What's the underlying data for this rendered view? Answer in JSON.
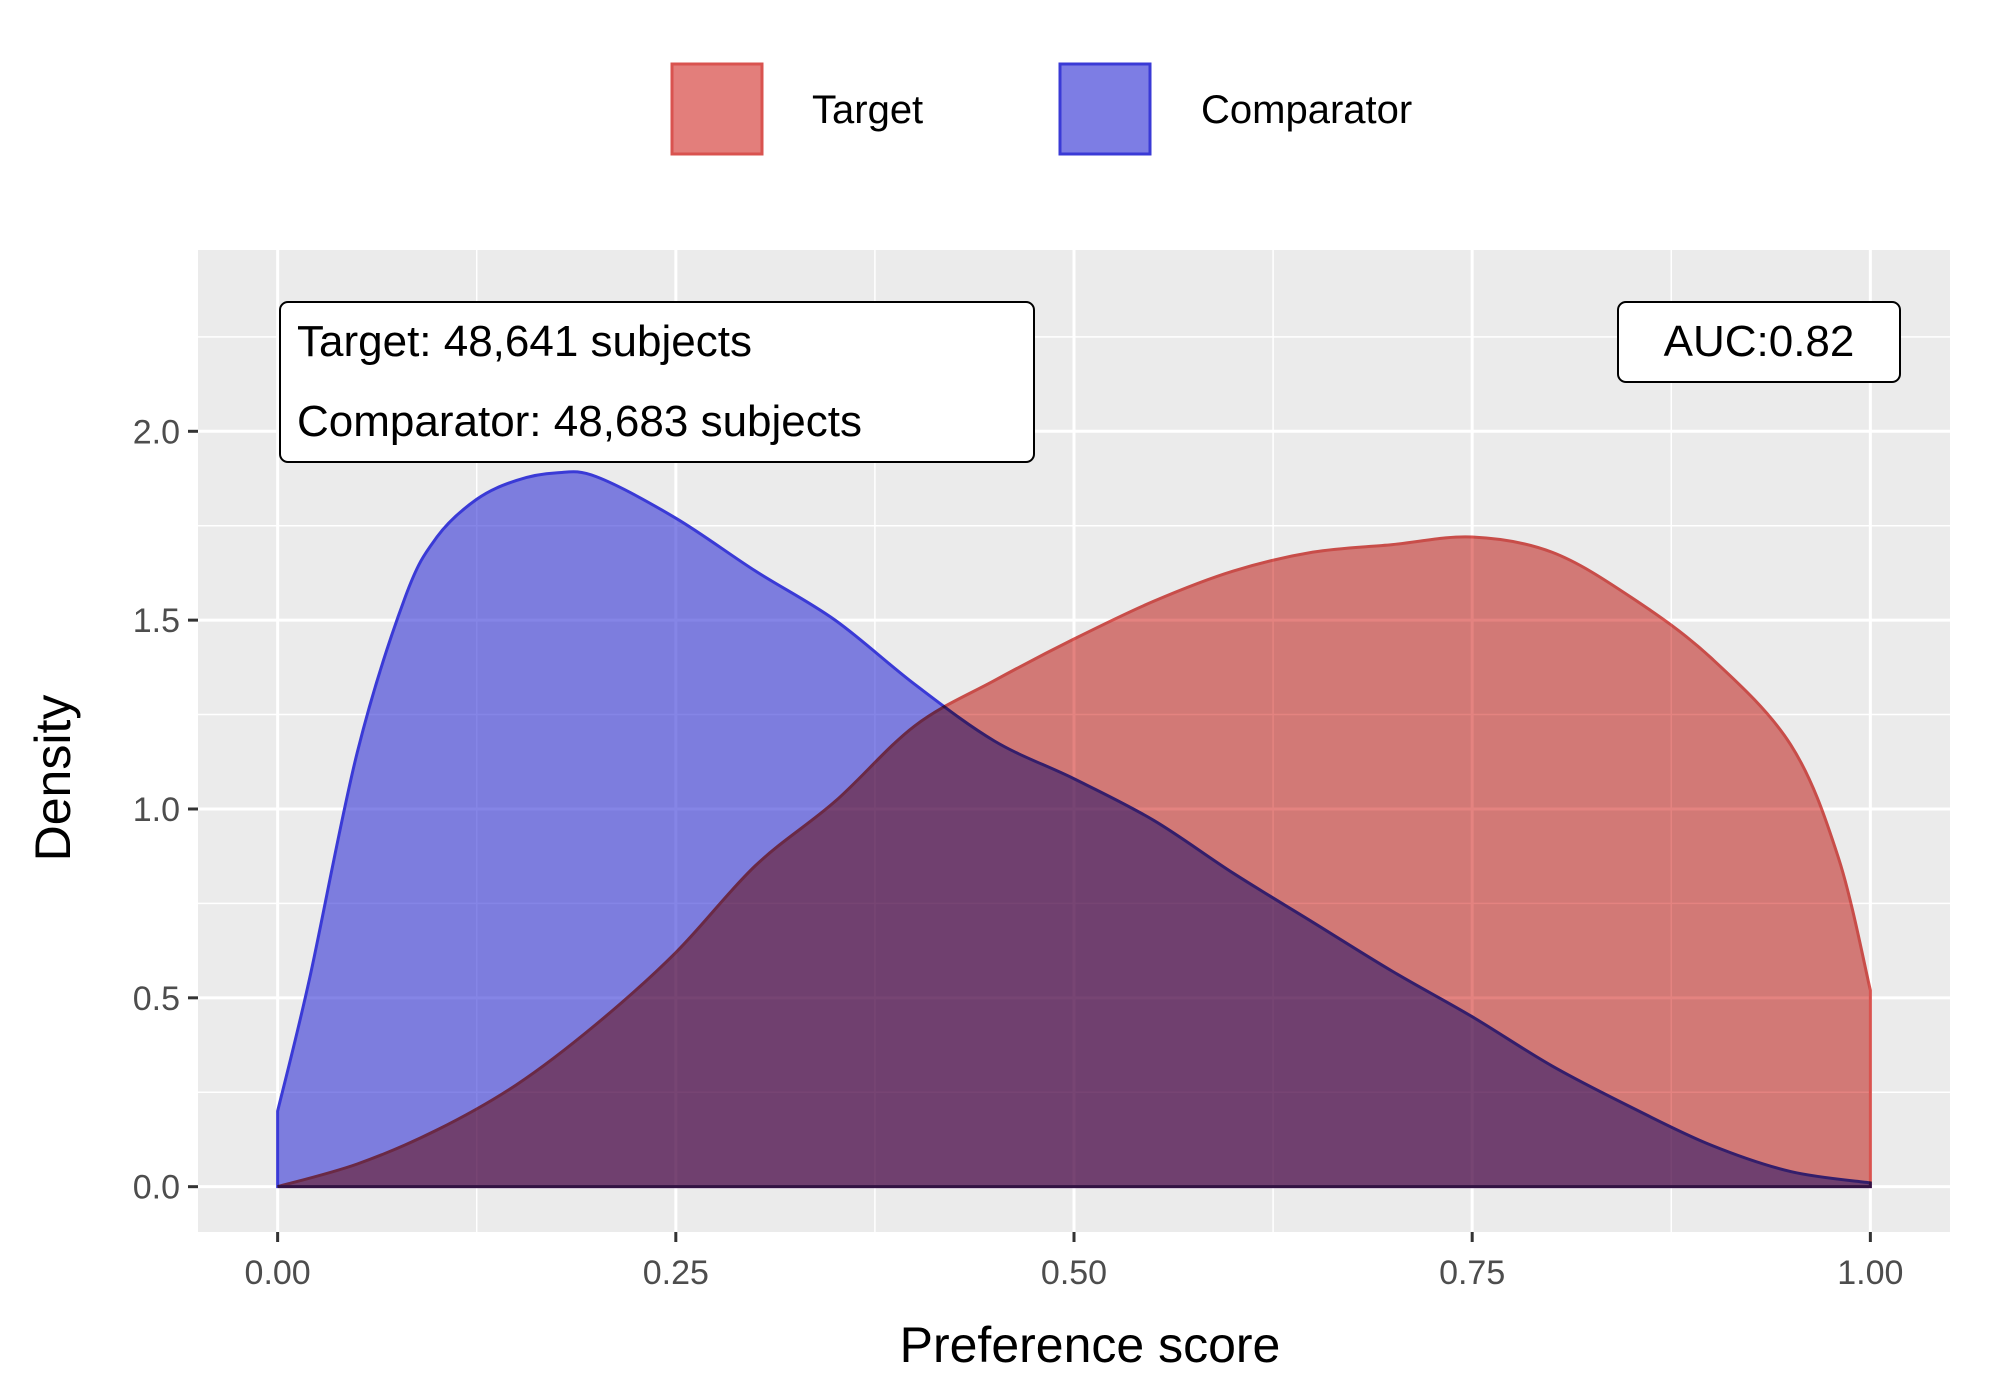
{
  "chart_data": {
    "type": "area",
    "xlabel": "Preference score",
    "ylabel": "Density",
    "xlim": [
      -0.05,
      1.05
    ],
    "ylim": [
      -0.12,
      2.48
    ],
    "xticks": [
      0.0,
      0.25,
      0.5,
      0.75,
      1.0
    ],
    "xtick_labels": [
      "0.00",
      "0.25",
      "0.50",
      "0.75",
      "1.00"
    ],
    "yticks": [
      0.0,
      0.5,
      1.0,
      1.5,
      2.0
    ],
    "ytick_labels": [
      "0.0",
      "0.5",
      "1.0",
      "1.5",
      "2.0"
    ],
    "grid": true,
    "legend_position": "top",
    "series": [
      {
        "name": "Target",
        "color": "#d9534f",
        "x": [
          0.0,
          0.05,
          0.1,
          0.15,
          0.2,
          0.25,
          0.3,
          0.35,
          0.4,
          0.45,
          0.5,
          0.55,
          0.6,
          0.65,
          0.7,
          0.75,
          0.8,
          0.85,
          0.9,
          0.95,
          0.98,
          1.0
        ],
        "y": [
          0.0,
          0.06,
          0.15,
          0.27,
          0.43,
          0.62,
          0.85,
          1.02,
          1.22,
          1.34,
          1.45,
          1.55,
          1.63,
          1.68,
          1.7,
          1.72,
          1.68,
          1.56,
          1.4,
          1.17,
          0.87,
          0.52
        ]
      },
      {
        "name": "Comparator",
        "color": "#3a3ad6",
        "x": [
          0.0,
          0.02,
          0.05,
          0.08,
          0.1,
          0.125,
          0.15,
          0.175,
          0.2,
          0.25,
          0.3,
          0.35,
          0.4,
          0.45,
          0.5,
          0.55,
          0.6,
          0.65,
          0.7,
          0.75,
          0.8,
          0.85,
          0.9,
          0.95,
          1.0
        ],
        "y": [
          0.2,
          0.55,
          1.15,
          1.56,
          1.72,
          1.82,
          1.87,
          1.89,
          1.88,
          1.77,
          1.63,
          1.5,
          1.33,
          1.18,
          1.08,
          0.97,
          0.83,
          0.7,
          0.57,
          0.45,
          0.32,
          0.21,
          0.11,
          0.04,
          0.01
        ]
      }
    ],
    "annotations": {
      "counts_line1": "Target: 48,641 subjects",
      "counts_line2": "Comparator: 48,683 subjects",
      "auc": "AUC:0.82"
    }
  }
}
